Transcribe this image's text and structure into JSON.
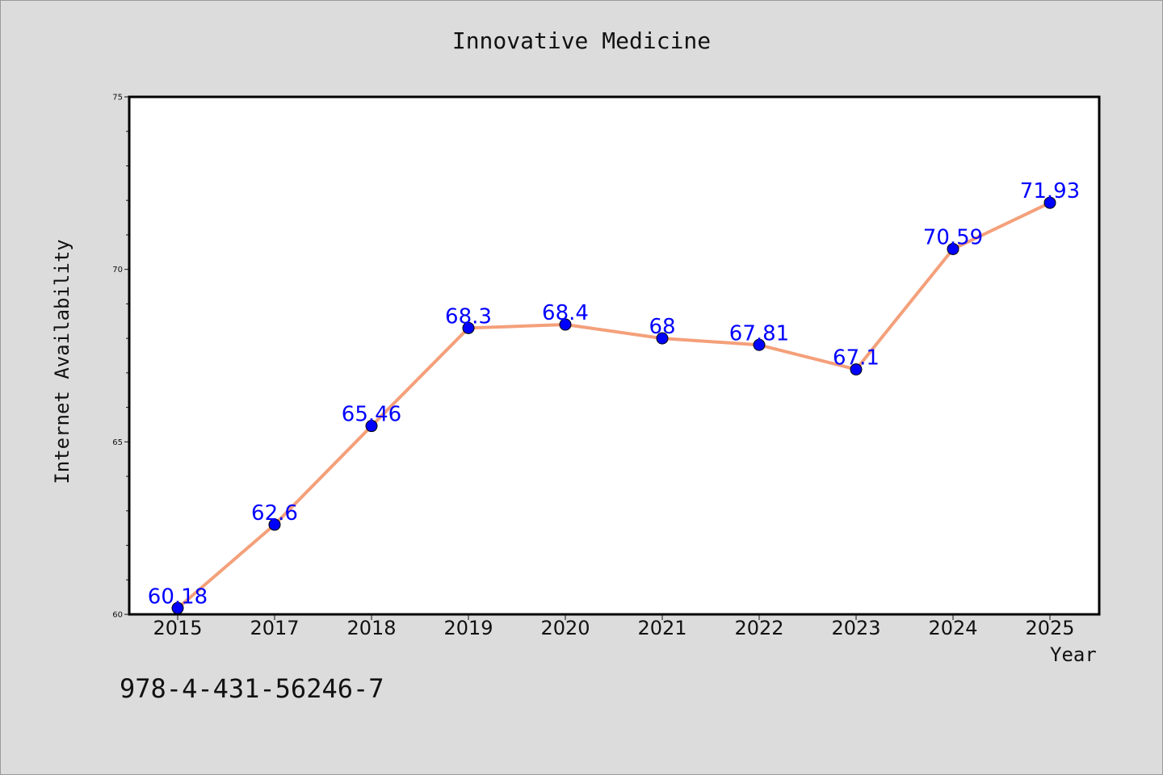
{
  "chart_data": {
    "type": "line",
    "title": "Innovative Medicine",
    "xlabel": "Year",
    "ylabel": "Internet Availability",
    "categories": [
      "2015",
      "2017",
      "2018",
      "2019",
      "2020",
      "2021",
      "2022",
      "2023",
      "2024",
      "2025"
    ],
    "series": [
      {
        "values": [
          60.18,
          62.6,
          65.46,
          68.3,
          68.4,
          68,
          67.81,
          67.1,
          70.59,
          71.93
        ]
      }
    ],
    "data_labels": [
      "60.18",
      "62.6",
      "65.46",
      "68.3",
      "68.4",
      "68",
      "67.81",
      "67.1",
      "70.59",
      "71.93"
    ],
    "ylim": [
      60,
      75
    ],
    "yticks": [
      "60",
      "65",
      "70",
      "75"
    ],
    "grid": false,
    "colors": {
      "line": "#f4a07a",
      "marker": "#0000ff",
      "data_label": "#0000ff",
      "background": "#dcdcdc",
      "plot_background": "#ffffff"
    }
  },
  "footnote": "978-4-431-56246-7"
}
